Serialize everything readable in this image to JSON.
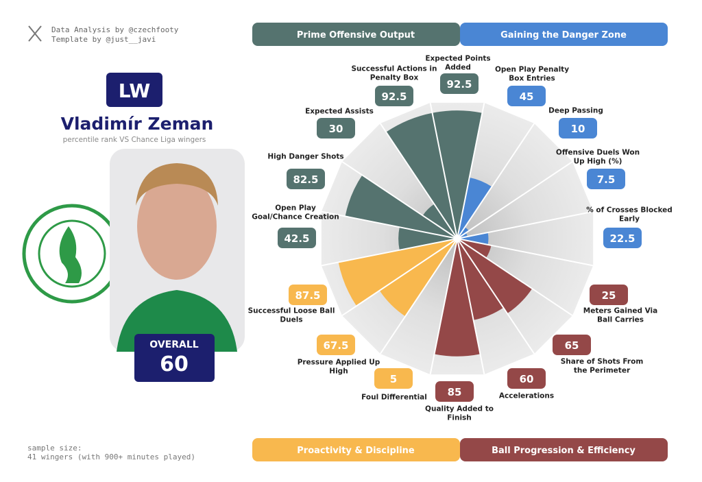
{
  "credits": [
    "Data Analysis by @czechfooty",
    "Template by @just__javi"
  ],
  "player": {
    "position": "LW",
    "name": "Vladimír Zeman",
    "subtitle": "percentile rank VS Chance Liga wingers",
    "overall_label": "OVERALL",
    "overall": 60
  },
  "sample_size": [
    "sample size:",
    "41 wingers (with 900+ minutes played)"
  ],
  "chart_data": {
    "type": "polar-bar",
    "rlim": [
      0,
      100
    ],
    "categories": [
      "Expected Points Added",
      "Open Play Penalty Box Entries",
      "Deep Passing",
      "Offensive Duels Won Up High (%)",
      "% of Crosses Blocked Early",
      "Meters Gained Via Ball Carries",
      "Share of Shots From the Perimeter",
      "Accelerations",
      "Quality Added to Finish",
      "Foul Differential",
      "Pressure Applied Up High",
      "Successful Loose Ball Duels",
      "Open Play Goal/Chance Creation",
      "High Danger Shots",
      "Expected Assists",
      "Successful Actions in Penalty Box"
    ],
    "series": [
      {
        "name": "Prime Offensive Output",
        "color": "#55736f",
        "values": [
          92.5,
          null,
          null,
          null,
          null,
          null,
          null,
          null,
          null,
          null,
          null,
          null,
          42.5,
          82.5,
          30,
          92.5
        ]
      },
      {
        "name": "Gaining the Danger Zone",
        "color": "#4a86d4",
        "values": [
          null,
          45,
          10,
          7.5,
          22.5,
          null,
          null,
          null,
          null,
          null,
          null,
          null,
          null,
          null,
          null,
          null
        ]
      },
      {
        "name": "Proactivity & Discipline",
        "color": "#f8b84e",
        "values": [
          null,
          null,
          null,
          null,
          null,
          null,
          null,
          null,
          null,
          5,
          67.5,
          87.5,
          null,
          null,
          null,
          null
        ]
      },
      {
        "name": "Ball Progression & Efficiency",
        "color": "#944848",
        "values": [
          null,
          null,
          null,
          null,
          null,
          25,
          65,
          60,
          85,
          null,
          null,
          null,
          null,
          null,
          null,
          null
        ]
      }
    ]
  }
}
